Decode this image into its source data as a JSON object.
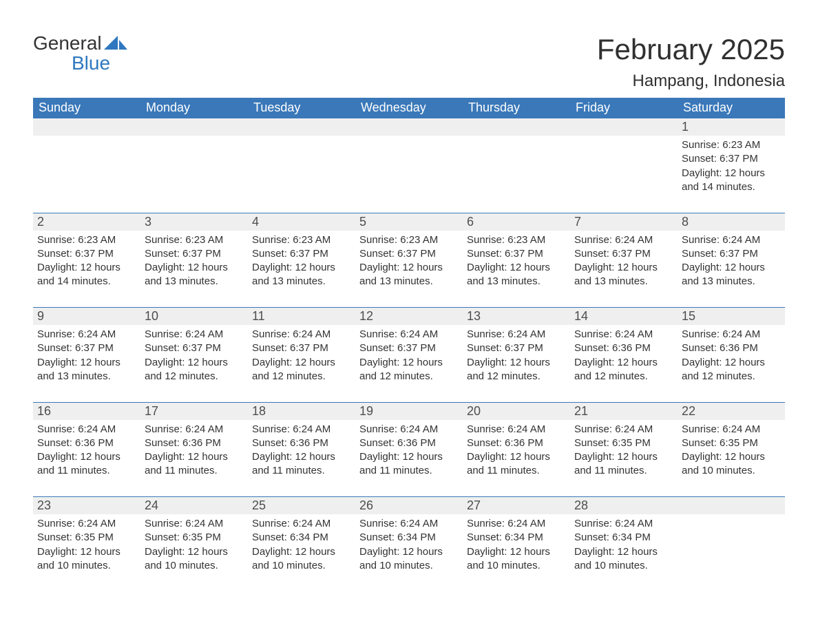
{
  "logo": {
    "general": "General",
    "blue": "Blue",
    "icon_color": "#2f78bf"
  },
  "title": {
    "month": "February 2025",
    "location": "Hampang, Indonesia"
  },
  "colors": {
    "header_bg": "#3a78b9",
    "header_text": "#ffffff",
    "daynum_bg": "#efefef",
    "daynum_text": "#4d4d4d",
    "body_text": "#333333",
    "row_border": "#3a78b9",
    "page_bg": "#ffffff",
    "logo_blue": "#2f78bf"
  },
  "day_headers": [
    "Sunday",
    "Monday",
    "Tuesday",
    "Wednesday",
    "Thursday",
    "Friday",
    "Saturday"
  ],
  "weeks": [
    [
      {
        "day": "",
        "sunrise": "",
        "sunset": "",
        "daylight1": "",
        "daylight2": ""
      },
      {
        "day": "",
        "sunrise": "",
        "sunset": "",
        "daylight1": "",
        "daylight2": ""
      },
      {
        "day": "",
        "sunrise": "",
        "sunset": "",
        "daylight1": "",
        "daylight2": ""
      },
      {
        "day": "",
        "sunrise": "",
        "sunset": "",
        "daylight1": "",
        "daylight2": ""
      },
      {
        "day": "",
        "sunrise": "",
        "sunset": "",
        "daylight1": "",
        "daylight2": ""
      },
      {
        "day": "",
        "sunrise": "",
        "sunset": "",
        "daylight1": "",
        "daylight2": ""
      },
      {
        "day": "1",
        "sunrise": "Sunrise: 6:23 AM",
        "sunset": "Sunset: 6:37 PM",
        "daylight1": "Daylight: 12 hours",
        "daylight2": "and 14 minutes."
      }
    ],
    [
      {
        "day": "2",
        "sunrise": "Sunrise: 6:23 AM",
        "sunset": "Sunset: 6:37 PM",
        "daylight1": "Daylight: 12 hours",
        "daylight2": "and 14 minutes."
      },
      {
        "day": "3",
        "sunrise": "Sunrise: 6:23 AM",
        "sunset": "Sunset: 6:37 PM",
        "daylight1": "Daylight: 12 hours",
        "daylight2": "and 13 minutes."
      },
      {
        "day": "4",
        "sunrise": "Sunrise: 6:23 AM",
        "sunset": "Sunset: 6:37 PM",
        "daylight1": "Daylight: 12 hours",
        "daylight2": "and 13 minutes."
      },
      {
        "day": "5",
        "sunrise": "Sunrise: 6:23 AM",
        "sunset": "Sunset: 6:37 PM",
        "daylight1": "Daylight: 12 hours",
        "daylight2": "and 13 minutes."
      },
      {
        "day": "6",
        "sunrise": "Sunrise: 6:23 AM",
        "sunset": "Sunset: 6:37 PM",
        "daylight1": "Daylight: 12 hours",
        "daylight2": "and 13 minutes."
      },
      {
        "day": "7",
        "sunrise": "Sunrise: 6:24 AM",
        "sunset": "Sunset: 6:37 PM",
        "daylight1": "Daylight: 12 hours",
        "daylight2": "and 13 minutes."
      },
      {
        "day": "8",
        "sunrise": "Sunrise: 6:24 AM",
        "sunset": "Sunset: 6:37 PM",
        "daylight1": "Daylight: 12 hours",
        "daylight2": "and 13 minutes."
      }
    ],
    [
      {
        "day": "9",
        "sunrise": "Sunrise: 6:24 AM",
        "sunset": "Sunset: 6:37 PM",
        "daylight1": "Daylight: 12 hours",
        "daylight2": "and 13 minutes."
      },
      {
        "day": "10",
        "sunrise": "Sunrise: 6:24 AM",
        "sunset": "Sunset: 6:37 PM",
        "daylight1": "Daylight: 12 hours",
        "daylight2": "and 12 minutes."
      },
      {
        "day": "11",
        "sunrise": "Sunrise: 6:24 AM",
        "sunset": "Sunset: 6:37 PM",
        "daylight1": "Daylight: 12 hours",
        "daylight2": "and 12 minutes."
      },
      {
        "day": "12",
        "sunrise": "Sunrise: 6:24 AM",
        "sunset": "Sunset: 6:37 PM",
        "daylight1": "Daylight: 12 hours",
        "daylight2": "and 12 minutes."
      },
      {
        "day": "13",
        "sunrise": "Sunrise: 6:24 AM",
        "sunset": "Sunset: 6:37 PM",
        "daylight1": "Daylight: 12 hours",
        "daylight2": "and 12 minutes."
      },
      {
        "day": "14",
        "sunrise": "Sunrise: 6:24 AM",
        "sunset": "Sunset: 6:36 PM",
        "daylight1": "Daylight: 12 hours",
        "daylight2": "and 12 minutes."
      },
      {
        "day": "15",
        "sunrise": "Sunrise: 6:24 AM",
        "sunset": "Sunset: 6:36 PM",
        "daylight1": "Daylight: 12 hours",
        "daylight2": "and 12 minutes."
      }
    ],
    [
      {
        "day": "16",
        "sunrise": "Sunrise: 6:24 AM",
        "sunset": "Sunset: 6:36 PM",
        "daylight1": "Daylight: 12 hours",
        "daylight2": "and 11 minutes."
      },
      {
        "day": "17",
        "sunrise": "Sunrise: 6:24 AM",
        "sunset": "Sunset: 6:36 PM",
        "daylight1": "Daylight: 12 hours",
        "daylight2": "and 11 minutes."
      },
      {
        "day": "18",
        "sunrise": "Sunrise: 6:24 AM",
        "sunset": "Sunset: 6:36 PM",
        "daylight1": "Daylight: 12 hours",
        "daylight2": "and 11 minutes."
      },
      {
        "day": "19",
        "sunrise": "Sunrise: 6:24 AM",
        "sunset": "Sunset: 6:36 PM",
        "daylight1": "Daylight: 12 hours",
        "daylight2": "and 11 minutes."
      },
      {
        "day": "20",
        "sunrise": "Sunrise: 6:24 AM",
        "sunset": "Sunset: 6:36 PM",
        "daylight1": "Daylight: 12 hours",
        "daylight2": "and 11 minutes."
      },
      {
        "day": "21",
        "sunrise": "Sunrise: 6:24 AM",
        "sunset": "Sunset: 6:35 PM",
        "daylight1": "Daylight: 12 hours",
        "daylight2": "and 11 minutes."
      },
      {
        "day": "22",
        "sunrise": "Sunrise: 6:24 AM",
        "sunset": "Sunset: 6:35 PM",
        "daylight1": "Daylight: 12 hours",
        "daylight2": "and 10 minutes."
      }
    ],
    [
      {
        "day": "23",
        "sunrise": "Sunrise: 6:24 AM",
        "sunset": "Sunset: 6:35 PM",
        "daylight1": "Daylight: 12 hours",
        "daylight2": "and 10 minutes."
      },
      {
        "day": "24",
        "sunrise": "Sunrise: 6:24 AM",
        "sunset": "Sunset: 6:35 PM",
        "daylight1": "Daylight: 12 hours",
        "daylight2": "and 10 minutes."
      },
      {
        "day": "25",
        "sunrise": "Sunrise: 6:24 AM",
        "sunset": "Sunset: 6:34 PM",
        "daylight1": "Daylight: 12 hours",
        "daylight2": "and 10 minutes."
      },
      {
        "day": "26",
        "sunrise": "Sunrise: 6:24 AM",
        "sunset": "Sunset: 6:34 PM",
        "daylight1": "Daylight: 12 hours",
        "daylight2": "and 10 minutes."
      },
      {
        "day": "27",
        "sunrise": "Sunrise: 6:24 AM",
        "sunset": "Sunset: 6:34 PM",
        "daylight1": "Daylight: 12 hours",
        "daylight2": "and 10 minutes."
      },
      {
        "day": "28",
        "sunrise": "Sunrise: 6:24 AM",
        "sunset": "Sunset: 6:34 PM",
        "daylight1": "Daylight: 12 hours",
        "daylight2": "and 10 minutes."
      },
      {
        "day": "",
        "sunrise": "",
        "sunset": "",
        "daylight1": "",
        "daylight2": ""
      }
    ]
  ]
}
